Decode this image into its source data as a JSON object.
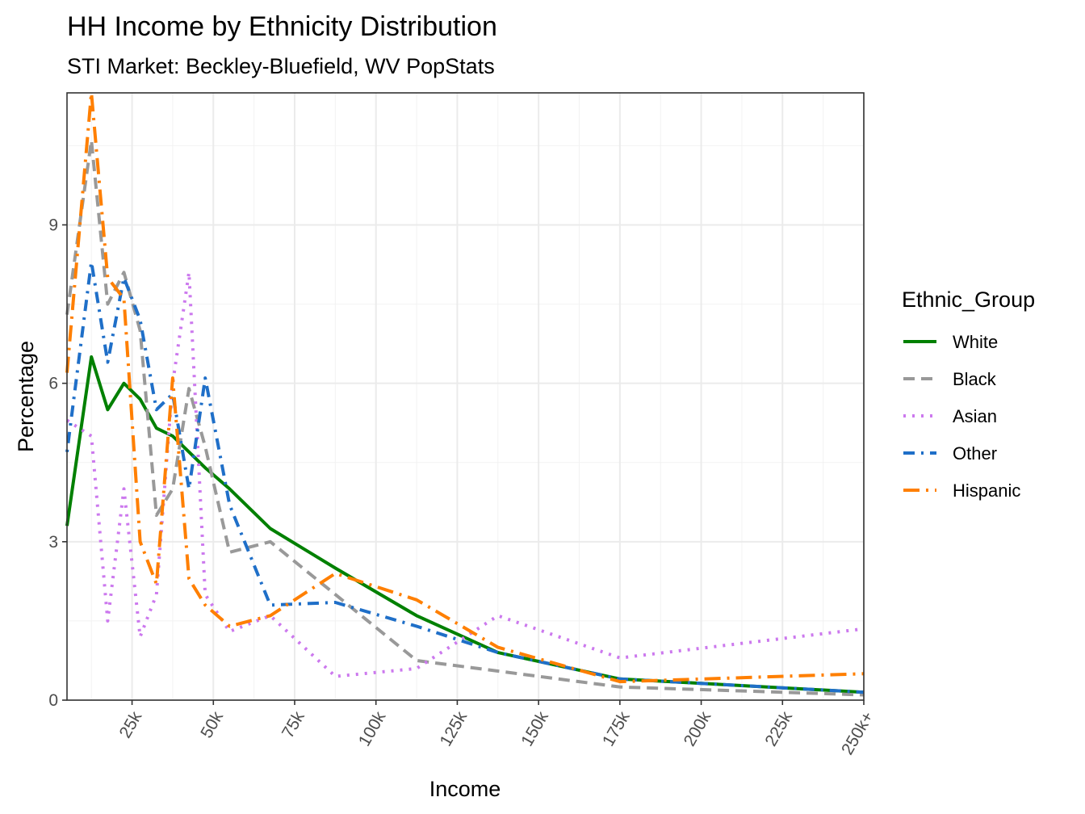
{
  "chart_data": {
    "type": "line",
    "title": "HH Income by Ethnicity Distribution",
    "subtitle": "STI Market: Beckley-Bluefield, WV PopStats",
    "xlabel": "Income",
    "ylabel": "Percentage",
    "xlim": [
      5,
      250
    ],
    "ylim": [
      0,
      11.5
    ],
    "x_ticks": [
      25,
      50,
      75,
      100,
      125,
      150,
      175,
      200,
      225,
      250
    ],
    "x_tick_labels": [
      "25k",
      "50k",
      "75k",
      "100k",
      "125k",
      "150k",
      "175k",
      "200k",
      "225k",
      "250k+"
    ],
    "y_ticks": [
      0,
      3,
      6,
      9
    ],
    "y_tick_labels": [
      "0",
      "3",
      "6",
      "9"
    ],
    "grid": true,
    "legend": {
      "title": "Ethnic_Group",
      "position": "right"
    },
    "x": [
      5,
      12.5,
      17.5,
      22.5,
      27.5,
      32.5,
      37.5,
      42.5,
      47.5,
      55,
      67.5,
      87.5,
      112.5,
      137.5,
      175,
      250
    ],
    "series": [
      {
        "name": "White",
        "color": "#008000",
        "dash": "solid",
        "values": [
          3.3,
          6.5,
          5.5,
          6.0,
          5.7,
          5.15,
          5.0,
          4.7,
          4.4,
          4.0,
          3.25,
          2.5,
          1.6,
          0.9,
          0.4,
          0.15
        ]
      },
      {
        "name": "Black",
        "color": "#999999",
        "dash": "dashed",
        "values": [
          7.3,
          10.6,
          7.5,
          8.1,
          7.0,
          3.5,
          4.0,
          5.9,
          4.8,
          2.8,
          3.0,
          2.0,
          0.75,
          0.55,
          0.25,
          0.1
        ]
      },
      {
        "name": "Asian",
        "color": "#cc79ee",
        "dash": "dotted",
        "values": [
          5.3,
          5.0,
          1.5,
          4.0,
          1.2,
          2.0,
          6.0,
          8.1,
          2.0,
          1.3,
          1.6,
          0.45,
          0.6,
          1.6,
          0.8,
          1.35
        ]
      },
      {
        "name": "Other",
        "color": "#1f6fc8",
        "dash": "dotdash",
        "values": [
          4.7,
          8.3,
          6.4,
          8.0,
          7.2,
          5.5,
          5.8,
          4.0,
          6.1,
          3.7,
          1.8,
          1.85,
          1.4,
          0.9,
          0.4,
          0.15
        ]
      },
      {
        "name": "Hispanic",
        "color": "#ff7f00",
        "dash": "longdash",
        "values": [
          6.2,
          11.5,
          8.0,
          7.6,
          3.0,
          2.2,
          6.1,
          2.3,
          1.8,
          1.4,
          1.6,
          2.4,
          1.9,
          1.0,
          0.35,
          0.5
        ]
      }
    ]
  }
}
